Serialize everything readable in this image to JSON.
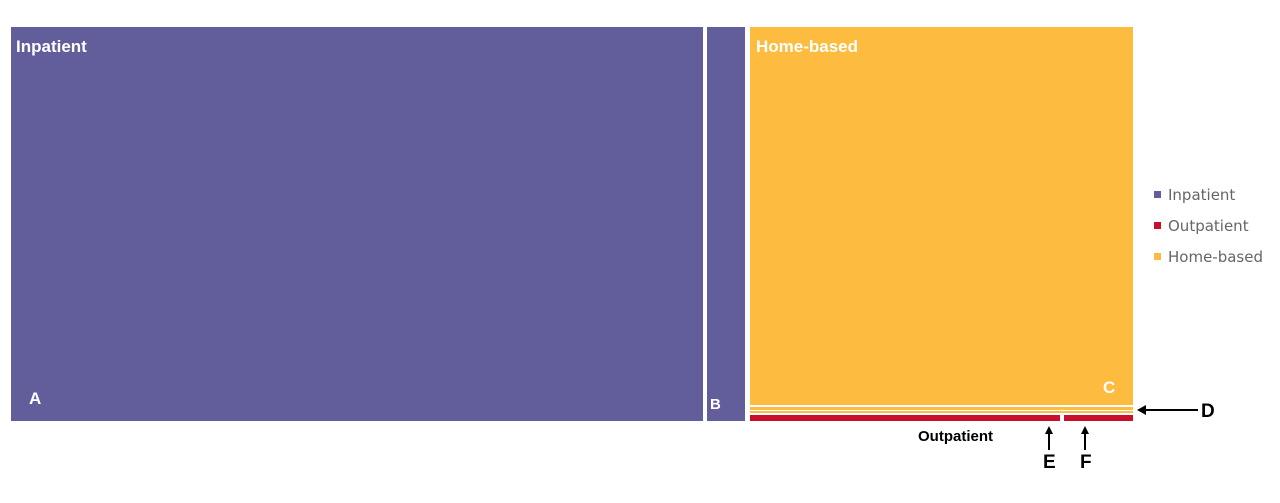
{
  "treemap": {
    "group_labels": {
      "inpatient": "Inpatient",
      "home_based": "Home-based",
      "outpatient": "Outpatient"
    },
    "markers": [
      "A",
      "B",
      "C",
      "D",
      "E",
      "F"
    ],
    "legend": [
      "Inpatient",
      "Outpatient",
      "Home-based"
    ]
  }
}
